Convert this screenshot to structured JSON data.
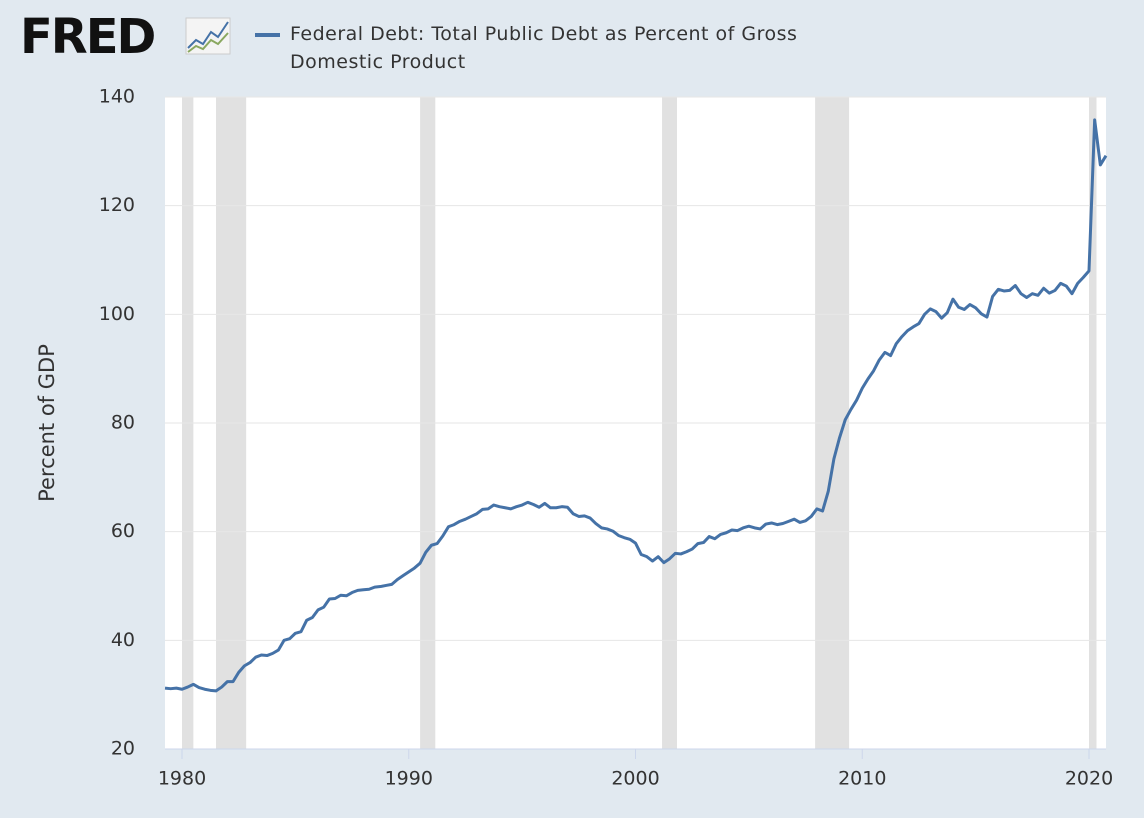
{
  "logo": "FRED",
  "chart_data": {
    "type": "line",
    "title": "Federal Debt: Total Public Debt as Percent of Gross Domestic Product",
    "y_label": "Percent of GDP",
    "x": [
      1979.25,
      1979.5,
      1979.75,
      1980,
      1980.25,
      1980.5,
      1980.75,
      1981,
      1981.25,
      1981.5,
      1981.75,
      1982,
      1982.25,
      1982.5,
      1982.75,
      1983,
      1983.25,
      1983.5,
      1983.75,
      1984,
      1984.25,
      1984.5,
      1984.75,
      1985,
      1985.25,
      1985.5,
      1985.75,
      1986,
      1986.25,
      1986.5,
      1986.75,
      1987,
      1987.25,
      1987.5,
      1987.75,
      1988,
      1988.25,
      1988.5,
      1988.75,
      1989,
      1989.25,
      1989.5,
      1989.75,
      1990,
      1990.25,
      1990.5,
      1990.75,
      1991,
      1991.25,
      1991.5,
      1991.75,
      1992,
      1992.25,
      1992.5,
      1992.75,
      1993,
      1993.25,
      1993.5,
      1993.75,
      1994,
      1994.25,
      1994.5,
      1994.75,
      1995,
      1995.25,
      1995.5,
      1995.75,
      1996,
      1996.25,
      1996.5,
      1996.75,
      1997,
      1997.25,
      1997.5,
      1997.75,
      1998,
      1998.25,
      1998.5,
      1998.75,
      1999,
      1999.25,
      1999.5,
      1999.75,
      2000,
      2000.25,
      2000.5,
      2000.75,
      2001,
      2001.25,
      2001.5,
      2001.75,
      2002,
      2002.25,
      2002.5,
      2002.75,
      2003,
      2003.25,
      2003.5,
      2003.75,
      2004,
      2004.25,
      2004.5,
      2004.75,
      2005,
      2005.25,
      2005.5,
      2005.75,
      2006,
      2006.25,
      2006.5,
      2006.75,
      2007,
      2007.25,
      2007.5,
      2007.75,
      2008,
      2008.25,
      2008.5,
      2008.75,
      2009,
      2009.25,
      2009.5,
      2009.75,
      2010,
      2010.25,
      2010.5,
      2010.75,
      2011,
      2011.25,
      2011.5,
      2011.75,
      2012,
      2012.25,
      2012.5,
      2012.75,
      2013,
      2013.25,
      2013.5,
      2013.75,
      2014,
      2014.25,
      2014.5,
      2014.75,
      2015,
      2015.25,
      2015.5,
      2015.75,
      2016,
      2016.25,
      2016.5,
      2016.75,
      2017,
      2017.25,
      2017.5,
      2017.75,
      2018,
      2018.25,
      2018.5,
      2018.75,
      2019,
      2019.25,
      2019.5,
      2019.75,
      2020,
      2020.25,
      2020.5,
      2020.75
    ],
    "series": [
      {
        "name": "Federal Debt: Total Public Debt as Percent of Gross Domestic Product",
        "color": "#4572a7",
        "values": [
          31.2,
          31.1,
          31.2,
          31.0,
          31.4,
          31.9,
          31.3,
          31.0,
          30.8,
          30.7,
          31.4,
          32.4,
          32.4,
          34.1,
          35.3,
          35.9,
          36.9,
          37.3,
          37.2,
          37.6,
          38.2,
          40.0,
          40.3,
          41.3,
          41.6,
          43.7,
          44.2,
          45.6,
          46.1,
          47.6,
          47.7,
          48.3,
          48.2,
          48.8,
          49.2,
          49.3,
          49.4,
          49.8,
          49.9,
          50.1,
          50.3,
          51.2,
          51.9,
          52.6,
          53.3,
          54.2,
          56.2,
          57.5,
          57.8,
          59.2,
          60.9,
          61.3,
          61.9,
          62.3,
          62.8,
          63.3,
          64.1,
          64.2,
          64.9,
          64.6,
          64.4,
          64.2,
          64.6,
          64.9,
          65.4,
          65.0,
          64.5,
          65.2,
          64.4,
          64.4,
          64.6,
          64.5,
          63.3,
          62.8,
          62.9,
          62.5,
          61.5,
          60.7,
          60.5,
          60.1,
          59.3,
          58.9,
          58.6,
          57.9,
          55.8,
          55.4,
          54.6,
          55.4,
          54.3,
          55.0,
          56.0,
          55.9,
          56.3,
          56.8,
          57.8,
          58.0,
          59.1,
          58.7,
          59.5,
          59.8,
          60.3,
          60.2,
          60.7,
          61.0,
          60.7,
          60.5,
          61.4,
          61.6,
          61.3,
          61.5,
          61.9,
          62.3,
          61.7,
          62.0,
          62.8,
          64.2,
          63.8,
          67.4,
          73.4,
          77.3,
          80.6,
          82.5,
          84.2,
          86.4,
          88.1,
          89.6,
          91.6,
          93.0,
          92.4,
          94.6,
          95.9,
          97.0,
          97.7,
          98.3,
          100.0,
          101.0,
          100.5,
          99.3,
          100.3,
          102.8,
          101.3,
          100.9,
          101.8,
          101.2,
          100.1,
          99.5,
          103.3,
          104.6,
          104.3,
          104.4,
          105.3,
          103.8,
          103.1,
          103.8,
          103.5,
          104.8,
          103.9,
          104.4,
          105.7,
          105.2,
          103.8,
          105.7,
          106.8,
          108.0,
          135.8,
          127.5,
          129.2
        ]
      }
    ],
    "recessions": [
      [
        1980.0,
        1980.5
      ],
      [
        1981.5,
        1982.83
      ],
      [
        1990.5,
        1991.17
      ],
      [
        2001.17,
        2001.83
      ],
      [
        2007.92,
        2009.42
      ],
      [
        2020.0,
        2020.33
      ]
    ],
    "xlim": [
      1979.25,
      2020.75
    ],
    "xticks": [
      1980,
      1990,
      2000,
      2010,
      2020
    ],
    "ylim": [
      20,
      140
    ],
    "yticks": [
      20,
      40,
      60,
      80,
      100,
      120,
      140
    ],
    "grid": true
  }
}
